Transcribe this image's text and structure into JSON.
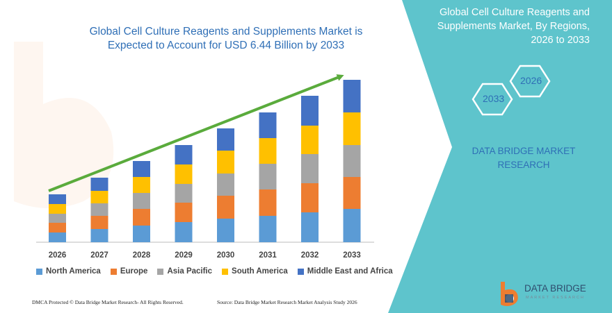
{
  "chart_data": {
    "type": "bar",
    "stacked": true,
    "title": "Global Cell Culture Reagents and Supplements Market is Expected to Account for USD 6.44 Billion by 2033",
    "categories": [
      "2026",
      "2027",
      "2028",
      "2029",
      "2030",
      "2031",
      "2032",
      "2033"
    ],
    "series": [
      {
        "name": "North America",
        "color": "#5b9bd5",
        "values": [
          14,
          19,
          24,
          29,
          34,
          38,
          43,
          48
        ]
      },
      {
        "name": "Europe",
        "color": "#ed7d31",
        "values": [
          14,
          19,
          24,
          28,
          33,
          38,
          42,
          46
        ]
      },
      {
        "name": "Asia Pacific",
        "color": "#a5a5a5",
        "values": [
          13,
          18,
          23,
          27,
          32,
          37,
          42,
          46
        ]
      },
      {
        "name": "South America",
        "color": "#ffc000",
        "values": [
          14,
          18,
          23,
          28,
          33,
          37,
          41,
          47
        ]
      },
      {
        "name": "Middle East and Africa",
        "color": "#4472c4",
        "values": [
          14,
          19,
          23,
          28,
          32,
          37,
          43,
          47
        ]
      }
    ],
    "ylim": [
      0,
      240
    ],
    "legend_position": "bottom",
    "grid": false,
    "trend_arrow": true
  },
  "side_panel": {
    "title": "Global Cell Culture Reagents and Supplements Market, By Regions, 2026 to 2033",
    "hex_start": "2026",
    "hex_end": "2033",
    "brand": "DATA BRIDGE MARKET RESEARCH",
    "panel_color": "#5ec4cc"
  },
  "logo": {
    "name": "DATA BRIDGE",
    "tagline": "MARKET RESEARCH"
  },
  "footer": {
    "left": "DMCA Protected © Data Bridge Market Research- All Rights Reserved.",
    "right": "Source: Data Bridge Market Research Market Analysis Study 2026"
  }
}
